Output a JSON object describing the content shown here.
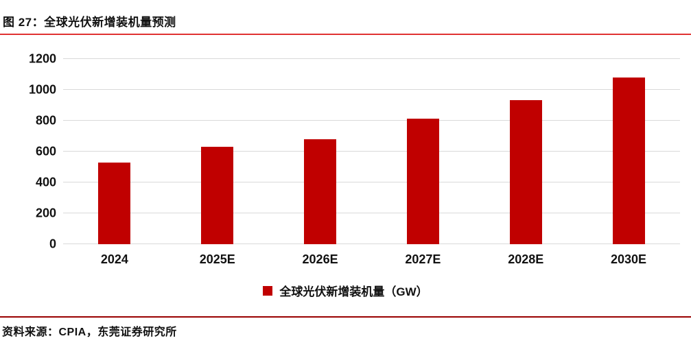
{
  "header": {
    "title": "图 27：全球光伏新增装机量预测"
  },
  "chart_data": {
    "type": "bar",
    "title": "图 27：全球光伏新增装机量预测",
    "categories": [
      "2024",
      "2025E",
      "2026E",
      "2027E",
      "2028E",
      "2030E"
    ],
    "values": [
      530,
      630,
      680,
      812,
      935,
      1078
    ],
    "xlabel": "",
    "ylabel": "",
    "ylim": [
      0,
      1200
    ],
    "yticks": [
      0,
      200,
      400,
      600,
      800,
      1000,
      1200
    ],
    "grid": true,
    "bar_color": "#c00000",
    "legend": {
      "label": "全球光伏新增装机量（GW）",
      "position": "bottom-center",
      "marker": "square-icon",
      "marker_color": "#c00000"
    }
  },
  "footer": {
    "source": "资料来源：CPIA，东莞证券研究所"
  },
  "colors": {
    "bar": "#c00000",
    "title_rule": "#e03131",
    "footer_rule": "#990000",
    "gridline": "#d9d9d9",
    "text": "#111111"
  }
}
